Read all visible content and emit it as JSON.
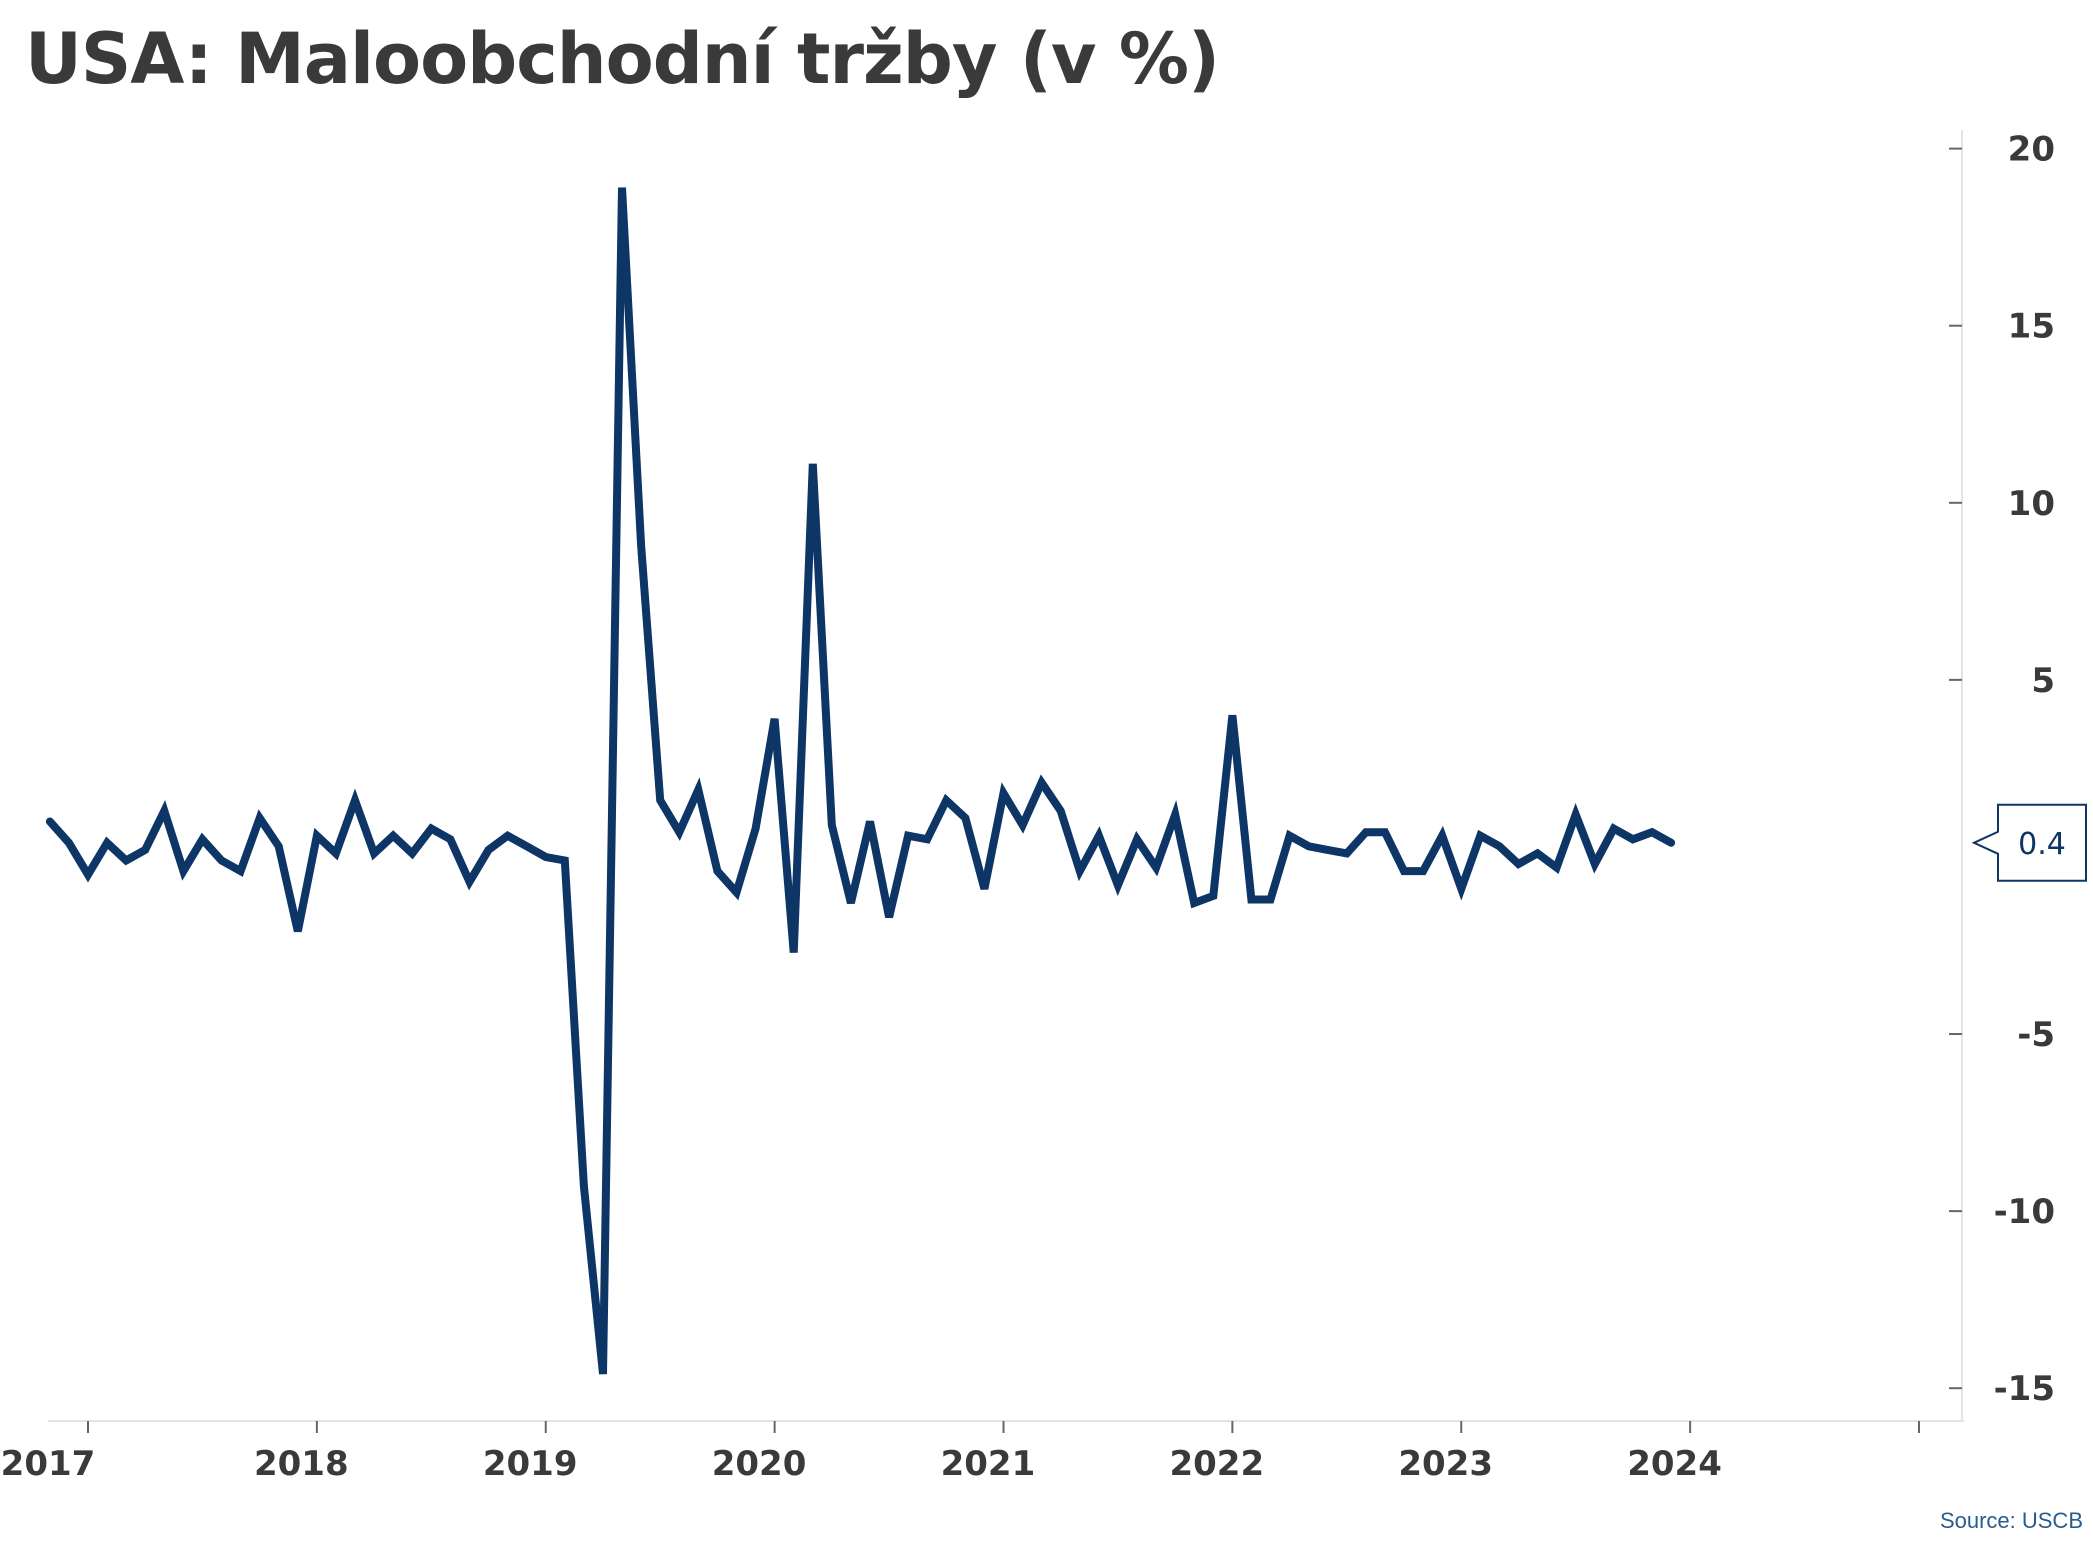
{
  "title": "USA: Maloobchodní tržby (v %)",
  "source": "Source: USCB",
  "colors": {
    "line": "#0d3566",
    "axis": "#666666",
    "text": "#3a3a3a"
  },
  "chart_data": {
    "type": "line",
    "title": "USA: Maloobchodní tržby (v %)",
    "xlabel": "",
    "ylabel": "",
    "ylim": [
      -15.7,
      20.3
    ],
    "y_ticks": [
      -15,
      -10,
      -5,
      5,
      10,
      15,
      20
    ],
    "y_axis_position": "right",
    "grid": false,
    "legend": "none",
    "x_tick_labels": [
      "2017",
      "2018",
      "2019",
      "2020",
      "2021",
      "2022",
      "2023",
      "2024"
    ],
    "x_tick_years": [
      2017,
      2018,
      2019,
      2020,
      2021,
      2022,
      2023,
      2024,
      2025
    ],
    "last_value_label": "0.4",
    "series": [
      {
        "start": "2016-11",
        "frequency": "monthly",
        "values": [
          1.0,
          0.4,
          -0.5,
          0.4,
          -0.1,
          0.2,
          1.3,
          -0.4,
          0.5,
          -0.1,
          -0.4,
          1.1,
          0.3,
          -2.1,
          0.6,
          0.1,
          1.6,
          0.1,
          0.6,
          0.1,
          0.8,
          0.5,
          -0.7,
          0.2,
          0.6,
          0.3,
          0.0,
          -0.1,
          -9.3,
          -14.6,
          18.9,
          8.8,
          1.6,
          0.7,
          1.9,
          -0.4,
          -1.0,
          0.8,
          3.9,
          -2.7,
          11.1,
          0.9,
          -1.3,
          1.0,
          -1.7,
          0.6,
          0.5,
          1.6,
          1.1,
          -0.9,
          1.8,
          0.9,
          2.1,
          1.3,
          -0.4,
          0.6,
          -0.8,
          0.5,
          -0.3,
          1.2,
          -1.3,
          -1.1,
          4.0,
          -1.2,
          -1.2,
          0.6,
          0.3,
          0.2,
          0.1,
          0.7,
          0.7,
          -0.4,
          -0.4,
          0.6,
          -0.9,
          0.6,
          0.3,
          -0.2,
          0.1,
          -0.3,
          1.2,
          -0.2,
          0.8,
          0.5,
          0.7,
          0.4
        ]
      }
    ]
  }
}
